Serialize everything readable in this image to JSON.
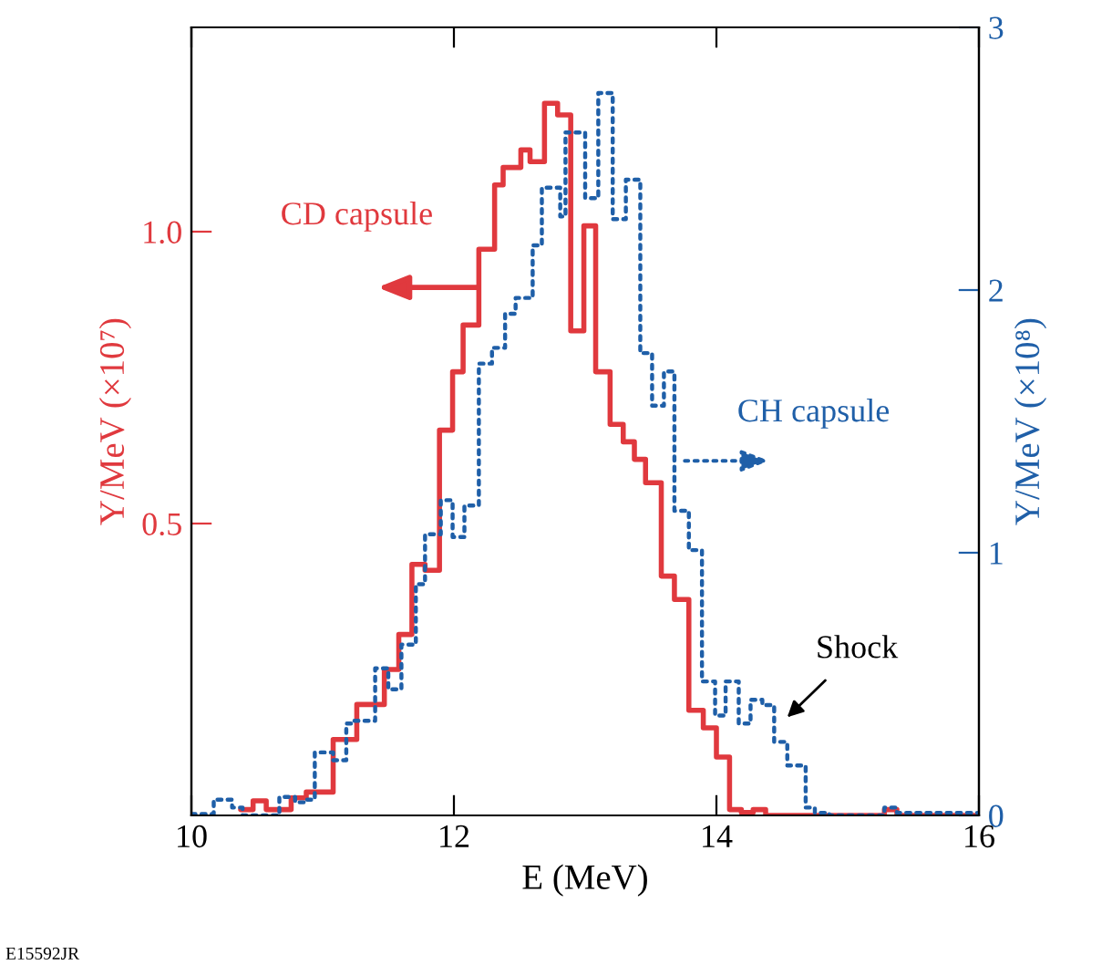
{
  "chart_data": {
    "type": "step",
    "xlabel": "E (MeV)",
    "ylabel": "Y/MeV (×10⁷)",
    "y2label": "Y/MeV (×10⁸)",
    "xlim": [
      10,
      16
    ],
    "xticks": [
      10,
      12,
      14,
      16
    ],
    "ylim": [
      0,
      1.35
    ],
    "yticks": [
      0.5,
      {
        "value": 1.0,
        "label": "1.0"
      }
    ],
    "y2lim": [
      0,
      3
    ],
    "y2ticks": [
      0,
      1,
      2,
      3
    ],
    "grid": false,
    "series": [
      {
        "name": "CD capsule",
        "color": "#e0393e",
        "line_style": "solid",
        "x": [
          10.375,
          10.47,
          10.57,
          10.76,
          10.875,
          11.08,
          11.26,
          11.47,
          11.58,
          11.68,
          11.78,
          11.89,
          11.99,
          12.07,
          12.19,
          12.31,
          12.375,
          12.51,
          12.58,
          12.69,
          12.79,
          12.89,
          12.99,
          13.08,
          13.19,
          13.29,
          13.375,
          13.46,
          13.58,
          13.68,
          13.79,
          13.9,
          14.0,
          14.1,
          14.19,
          14.28,
          14.375,
          15.28,
          15.375,
          16
        ],
        "values": [
          0.01,
          0.025,
          0.01,
          0.03,
          0.04,
          0.13,
          0.19,
          0.25,
          0.31,
          0.43,
          0.42,
          0.66,
          0.76,
          0.84,
          0.97,
          1.08,
          1.11,
          1.14,
          1.12,
          1.22,
          1.2,
          0.83,
          1.01,
          0.76,
          0.67,
          0.64,
          0.61,
          0.57,
          0.41,
          0.37,
          0.18,
          0.15,
          0.1,
          0.01,
          0.005,
          0.01,
          0,
          0.01,
          0,
          0
        ]
      },
      {
        "name": "CH capsule",
        "color": "#1f5fa8",
        "axis": "y2",
        "line_style": "dotted",
        "x": [
          10.0,
          10.17,
          10.31,
          10.39,
          10.67,
          10.79,
          10.86,
          10.94,
          11.08,
          11.18,
          11.22,
          11.4,
          11.5,
          11.6,
          11.71,
          11.78,
          11.9,
          11.99,
          12.08,
          12.19,
          12.29,
          12.39,
          12.47,
          12.6,
          12.67,
          12.81,
          12.85,
          13.0,
          13.1,
          13.21,
          13.31,
          13.42,
          13.51,
          13.6,
          13.68,
          13.79,
          13.89,
          13.99,
          14.07,
          14.17,
          14.26,
          14.35,
          14.44,
          14.54,
          14.68,
          14.75,
          14.86,
          15.28,
          15.375,
          16
        ],
        "values": [
          0.005,
          0.06,
          0.03,
          0,
          0.07,
          0.05,
          0.06,
          0.24,
          0.21,
          0.35,
          0.36,
          0.56,
          0.48,
          0.65,
          0.88,
          1.07,
          1.2,
          1.06,
          1.18,
          1.72,
          1.78,
          1.91,
          1.97,
          2.17,
          2.39,
          2.28,
          2.6,
          2.35,
          2.75,
          2.27,
          2.42,
          1.76,
          1.56,
          1.69,
          1.16,
          1.01,
          0.51,
          0.38,
          0.51,
          0.35,
          0.44,
          0.42,
          0.28,
          0.19,
          0.03,
          0.01,
          0,
          0.03,
          0.01,
          0.01
        ]
      }
    ],
    "annotations": [
      "Shock",
      "E15592JR"
    ]
  }
}
